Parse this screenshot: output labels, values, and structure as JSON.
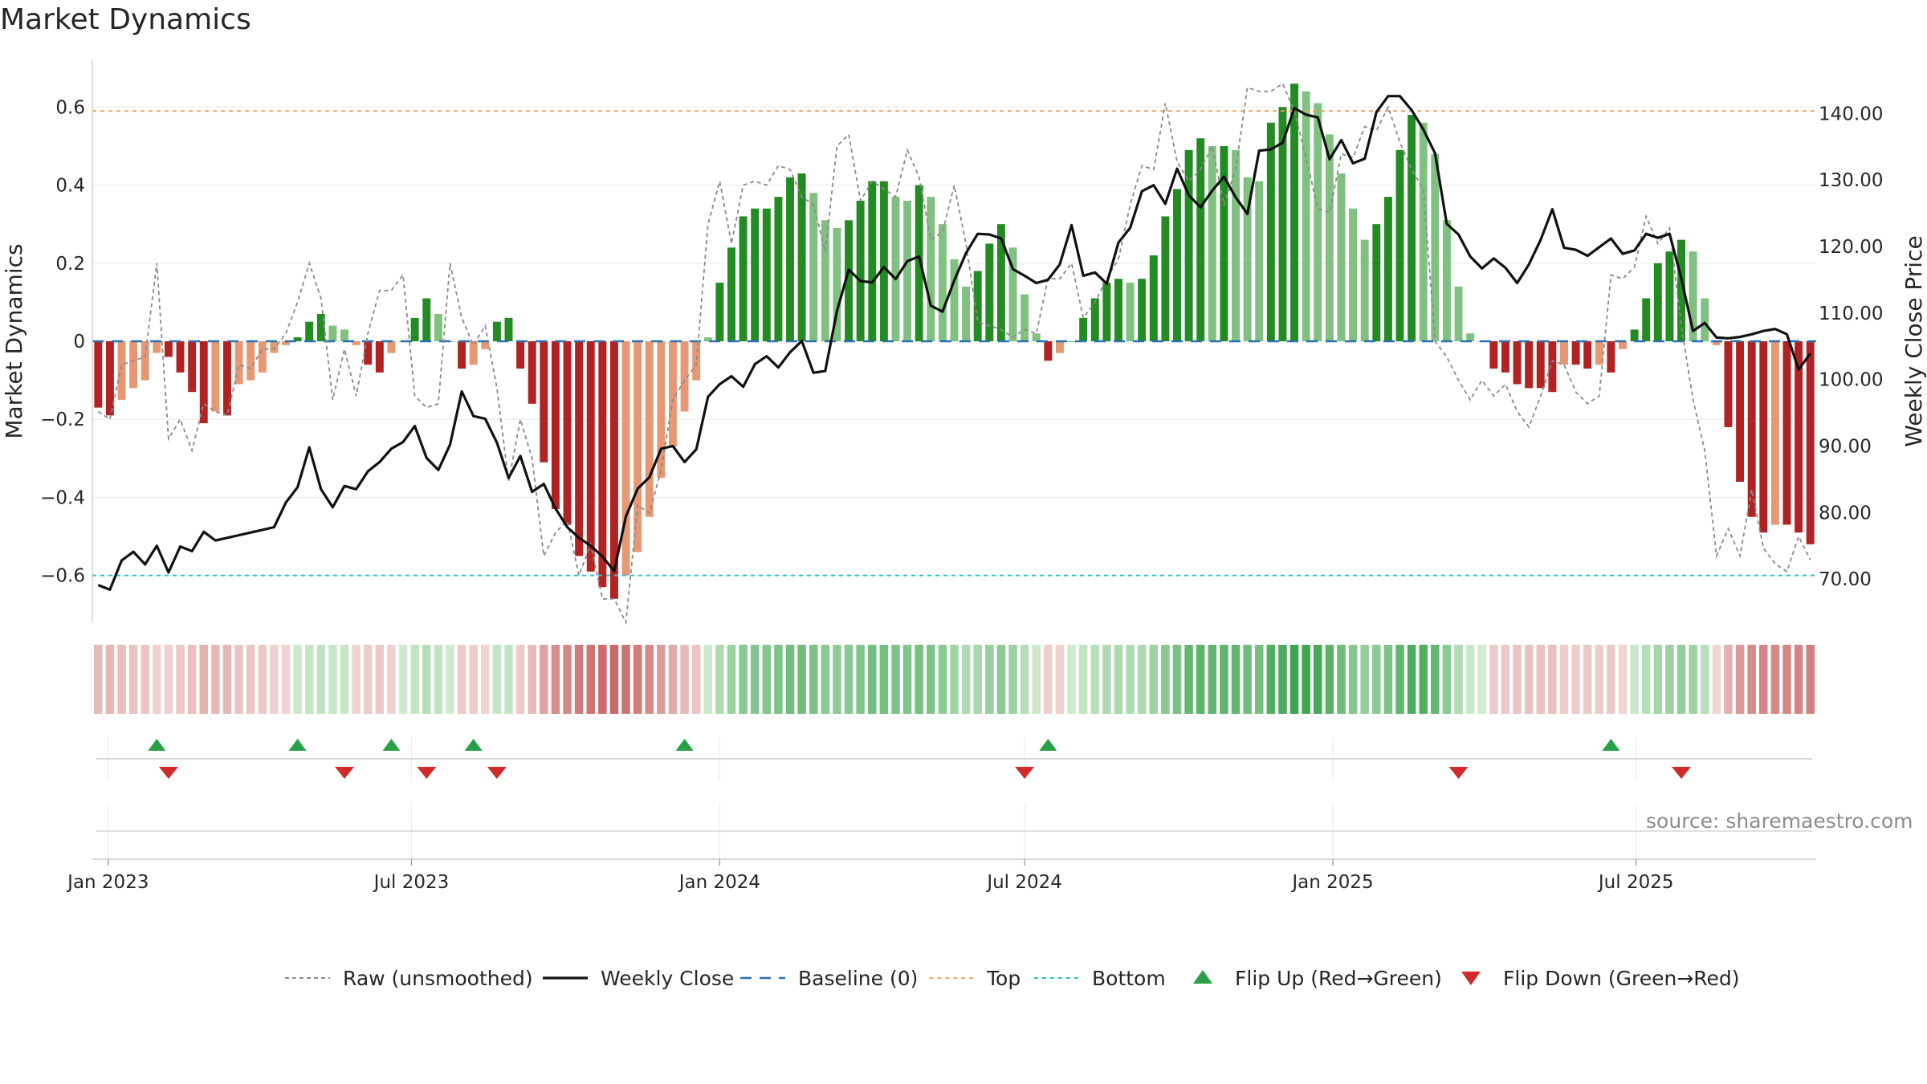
{
  "title": "Market Dynamics",
  "watermark": "source: sharemaestro.com",
  "colors": {
    "strong_up": "#228b22",
    "weak_up": "#80c080",
    "strong_down": "#b22222",
    "weak_down": "#e59873",
    "close_line": "#111111",
    "raw_line": "#8a8a8a",
    "baseline": "#2a6fb0",
    "top": "#f0a060",
    "bottom": "#30c0d0",
    "flip_up": "#27a046",
    "flip_down": "#d12a2a"
  },
  "chart_data": {
    "type": "bar",
    "title": "Market Dynamics",
    "start_date": "2022-12-26",
    "frequency": "weekly",
    "y_left": {
      "label": "Market Dynamics",
      "range": [
        -0.72,
        0.72
      ],
      "ticks": [
        0.6,
        0.4,
        0.2,
        0,
        -0.2,
        -0.4,
        -0.6
      ],
      "tick_labels": [
        "0.6",
        "0.4",
        "0.2",
        "0",
        "−0.2",
        "−0.4",
        "−0.6"
      ]
    },
    "y_right": {
      "label": "Weekly Close Price",
      "range": [
        63.5,
        148
      ],
      "ticks": [
        140,
        130,
        120,
        110,
        100,
        90,
        80,
        70
      ],
      "tick_labels": [
        "140.00",
        "130.00",
        "120.00",
        "110.00",
        "100.00",
        "90.00",
        "80.00",
        "70.00"
      ]
    },
    "x_ticks": [
      {
        "label": "Jan 2023",
        "date": "2023-01-01"
      },
      {
        "label": "Jul 2023",
        "date": "2023-07-01"
      },
      {
        "label": "Jan 2024",
        "date": "2024-01-01"
      },
      {
        "label": "Jul 2024",
        "date": "2024-07-01"
      },
      {
        "label": "Jan 2025",
        "date": "2025-01-01"
      },
      {
        "label": "Jul 2025",
        "date": "2025-07-01"
      }
    ],
    "top_level": 0.59,
    "bottom_level": -0.6,
    "baseline": 0,
    "momentum": [
      -0.17,
      -0.19,
      -0.15,
      -0.12,
      -0.1,
      -0.03,
      -0.04,
      -0.08,
      -0.13,
      -0.21,
      -0.18,
      -0.19,
      -0.11,
      -0.1,
      -0.08,
      -0.03,
      -0.01,
      0.01,
      0.05,
      0.07,
      0.04,
      0.03,
      -0.01,
      -0.06,
      -0.08,
      -0.03,
      0,
      0.06,
      0.11,
      0.07,
      0,
      -0.07,
      -0.06,
      -0.02,
      0.05,
      0.06,
      -0.07,
      -0.16,
      -0.31,
      -0.43,
      -0.47,
      -0.55,
      -0.59,
      -0.63,
      -0.66,
      -0.6,
      -0.54,
      -0.45,
      -0.35,
      -0.27,
      -0.18,
      -0.1,
      0.01,
      0.15,
      0.24,
      0.32,
      0.34,
      0.34,
      0.37,
      0.42,
      0.43,
      0.38,
      0.31,
      0.29,
      0.31,
      0.36,
      0.41,
      0.41,
      0.37,
      0.36,
      0.4,
      0.37,
      0.3,
      0.21,
      0.14,
      0.18,
      0.25,
      0.3,
      0.24,
      0.12,
      0.02,
      -0.05,
      -0.03,
      0,
      0.06,
      0.11,
      0.15,
      0.16,
      0.15,
      0.16,
      0.22,
      0.32,
      0.39,
      0.49,
      0.52,
      0.5,
      0.5,
      0.49,
      0.42,
      0.41,
      0.56,
      0.6,
      0.66,
      0.64,
      0.61,
      0.53,
      0.43,
      0.34,
      0.26,
      0.3,
      0.37,
      0.49,
      0.58,
      0.56,
      0.48,
      0.31,
      0.14,
      0.02,
      0,
      -0.07,
      -0.08,
      -0.11,
      -0.12,
      -0.12,
      -0.13,
      -0.06,
      -0.06,
      -0.07,
      -0.06,
      -0.08,
      -0.02,
      0.03,
      0.11,
      0.2,
      0.23,
      0.26,
      0.23,
      0.11,
      -0.01,
      -0.22,
      -0.36,
      -0.45,
      -0.49,
      -0.47,
      -0.47,
      -0.49,
      -0.52
    ],
    "raw": [
      -0.18,
      -0.2,
      -0.06,
      -0.05,
      -0.04,
      0.2,
      -0.25,
      -0.2,
      -0.28,
      -0.16,
      -0.18,
      -0.19,
      -0.06,
      -0.07,
      -0.02,
      -0.02,
      0.02,
      0.1,
      0.2,
      0.11,
      -0.15,
      -0.02,
      -0.14,
      0.02,
      0.13,
      0.13,
      0.17,
      -0.14,
      -0.17,
      -0.16,
      0.2,
      0.06,
      -0.01,
      0.04,
      -0.12,
      -0.36,
      -0.2,
      -0.3,
      -0.55,
      -0.49,
      -0.46,
      -0.6,
      -0.52,
      -0.66,
      -0.66,
      -0.72,
      -0.42,
      -0.44,
      -0.33,
      -0.15,
      -0.1,
      -0.06,
      0.3,
      0.41,
      0.25,
      0.4,
      0.41,
      0.4,
      0.45,
      0.44,
      0.37,
      0.35,
      0.23,
      0.5,
      0.53,
      0.36,
      0.41,
      0.39,
      0.37,
      0.49,
      0.42,
      0.26,
      0.28,
      0.4,
      0.25,
      0.05,
      0.04,
      0.03,
      0.01,
      0.03,
      0.02,
      0.16,
      0.16,
      0.2,
      0.06,
      0.1,
      0.16,
      0.21,
      0.35,
      0.45,
      0.44,
      0.61,
      0.46,
      0.41,
      0.44,
      0.5,
      0.35,
      0.44,
      0.65,
      0.64,
      0.64,
      0.66,
      0.59,
      0.47,
      0.34,
      0.33,
      0.48,
      0.47,
      0.55,
      0.54,
      0.6,
      0.51,
      0.44,
      0.39,
      0.0,
      -0.04,
      -0.1,
      -0.15,
      -0.1,
      -0.14,
      -0.11,
      -0.18,
      -0.22,
      -0.14,
      -0.05,
      -0.06,
      -0.13,
      -0.16,
      -0.14,
      0.17,
      0.16,
      0.19,
      0.32,
      0.25,
      0.29,
      0.04,
      -0.15,
      -0.28,
      -0.55,
      -0.48,
      -0.55,
      -0.38,
      -0.53,
      -0.57,
      -0.59,
      -0.5,
      -0.56
    ],
    "close": [
      69.1,
      68.4,
      72.8,
      74.1,
      72.2,
      75.0,
      71.0,
      74.9,
      74.2,
      77.1,
      75.8,
      76.2,
      76.6,
      77.0,
      77.4,
      77.8,
      81.5,
      83.8,
      89.8,
      83.5,
      80.8,
      84.0,
      83.5,
      86.2,
      87.6,
      89.6,
      90.6,
      93.0,
      88.2,
      86.4,
      90.2,
      98.2,
      94.5,
      94.1,
      90.5,
      85.2,
      88.5,
      83.1,
      84.3,
      80.6,
      77.8,
      76.2,
      75.0,
      73.4,
      71.2,
      79.4,
      83.6,
      85.3,
      89.6,
      90.0,
      87.6,
      89.5,
      97.4,
      99.3,
      100.5,
      98.9,
      102.3,
      103.5,
      101.8,
      104.1,
      105.8,
      101.0,
      101.3,
      110.3,
      116.5,
      114.8,
      114.6,
      116.9,
      115.1,
      117.8,
      118.5,
      111.1,
      110.2,
      114.9,
      119.0,
      121.9,
      121.8,
      121.2,
      116.6,
      115.6,
      114.5,
      115.0,
      117.3,
      123.2,
      115.6,
      116.1,
      114.4,
      120.6,
      122.8,
      128.3,
      129.2,
      126.4,
      131.7,
      127.7,
      125.9,
      128.4,
      130.5,
      127.4,
      124.9,
      134.4,
      134.6,
      135.6,
      140.8,
      139.8,
      139.4,
      133.1,
      136.0,
      132.5,
      133.2,
      140.2,
      142.6,
      142.6,
      140.5,
      137.6,
      134.0,
      123.4,
      121.8,
      118.5,
      116.7,
      118.2,
      116.8,
      114.5,
      117.3,
      121.0,
      125.6,
      119.8,
      119.5,
      118.6,
      119.9,
      121.2,
      118.9,
      119.4,
      121.9,
      121.3,
      121.9,
      115.2,
      107.3,
      108.5,
      106.3,
      106.2,
      106.4,
      106.8,
      107.3,
      107.6,
      106.8,
      101.5,
      103.9
    ],
    "flip_up": [
      5,
      17,
      25,
      32,
      50,
      81,
      129
    ],
    "flip_down": [
      6,
      21,
      28,
      34,
      79,
      116,
      135
    ],
    "regime_strip": "Per-week shaded strip: green shades for positive momentum, red shades for negative, intensity ~ magnitude",
    "legend": [
      "Raw (unsmoothed)",
      "Weekly Close",
      "Baseline (0)",
      "Top",
      "Bottom",
      "Flip Up (Red→Green)",
      "Flip Down (Green→Red)"
    ],
    "legend_position": "bottom-center"
  }
}
